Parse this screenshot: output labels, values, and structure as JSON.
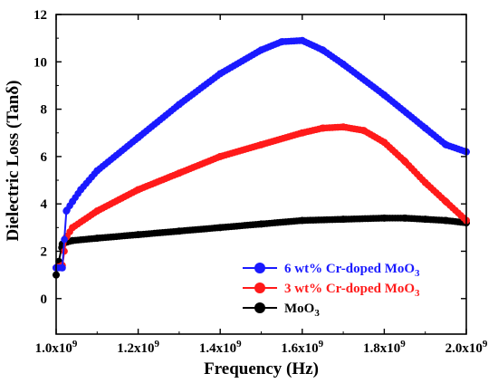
{
  "chart_data": {
    "type": "line",
    "xlabel": "Frequency (Hz)",
    "ylabel": "Dielectric Loss (Tanδ)",
    "xlim": [
      1000000000.0,
      2000000000.0
    ],
    "ylim": [
      -1.5,
      12
    ],
    "x_ticks": [
      {
        "value": 1000000000.0,
        "mant": "1.0x10",
        "exp": "9"
      },
      {
        "value": 1200000000.0,
        "mant": "1.2x10",
        "exp": "9"
      },
      {
        "value": 1400000000.0,
        "mant": "1.4x10",
        "exp": "9"
      },
      {
        "value": 1600000000.0,
        "mant": "1.6x10",
        "exp": "9"
      },
      {
        "value": 1800000000.0,
        "mant": "1.8x10",
        "exp": "9"
      },
      {
        "value": 2000000000.0,
        "mant": "2.0x10",
        "exp": "9"
      }
    ],
    "y_ticks": [
      0,
      2,
      4,
      6,
      8,
      10,
      12
    ],
    "grid": false,
    "legend_position": "bottom-right",
    "series": [
      {
        "name": "6 wt% Cr-doped MoO3",
        "legend_main": "6 wt% Cr-doped MoO",
        "legend_sub": "3",
        "color": "#1a1aff",
        "x": [
          1000000000.0,
          1015000000.0,
          1025000000.0,
          1040000000.0,
          1060000000.0,
          1100000000.0,
          1200000000.0,
          1300000000.0,
          1400000000.0,
          1500000000.0,
          1550000000.0,
          1600000000.0,
          1650000000.0,
          1700000000.0,
          1800000000.0,
          1900000000.0,
          1950000000.0,
          2000000000.0
        ],
        "y": [
          1.3,
          1.3,
          3.7,
          4.1,
          4.6,
          5.4,
          6.8,
          8.2,
          9.5,
          10.5,
          10.85,
          10.9,
          10.5,
          9.9,
          8.6,
          7.2,
          6.5,
          6.2
        ]
      },
      {
        "name": "3 wt% Cr-doped MoO3",
        "legend_main": "3 wt% Cr-doped MoO",
        "legend_sub": "3",
        "color": "#ff1a1a",
        "x": [
          1000000000.0,
          1015000000.0,
          1025000000.0,
          1040000000.0,
          1100000000.0,
          1200000000.0,
          1300000000.0,
          1400000000.0,
          1500000000.0,
          1600000000.0,
          1650000000.0,
          1700000000.0,
          1750000000.0,
          1800000000.0,
          1850000000.0,
          1900000000.0,
          1950000000.0,
          2000000000.0
        ],
        "y": [
          1.3,
          1.4,
          2.6,
          3.0,
          3.7,
          4.6,
          5.3,
          6.0,
          6.5,
          7.0,
          7.2,
          7.25,
          7.1,
          6.6,
          5.8,
          4.9,
          4.1,
          3.3
        ]
      },
      {
        "name": "MoO3",
        "legend_main": "MoO",
        "legend_sub": "3",
        "color": "#000000",
        "x": [
          1000000000.0,
          1015000000.0,
          1020000000.0,
          1040000000.0,
          1100000000.0,
          1200000000.0,
          1300000000.0,
          1400000000.0,
          1500000000.0,
          1600000000.0,
          1700000000.0,
          1800000000.0,
          1850000000.0,
          1900000000.0,
          1950000000.0,
          2000000000.0
        ],
        "y": [
          1.0,
          2.3,
          2.35,
          2.45,
          2.55,
          2.7,
          2.85,
          3.0,
          3.15,
          3.3,
          3.35,
          3.4,
          3.4,
          3.35,
          3.3,
          3.2
        ]
      }
    ]
  }
}
